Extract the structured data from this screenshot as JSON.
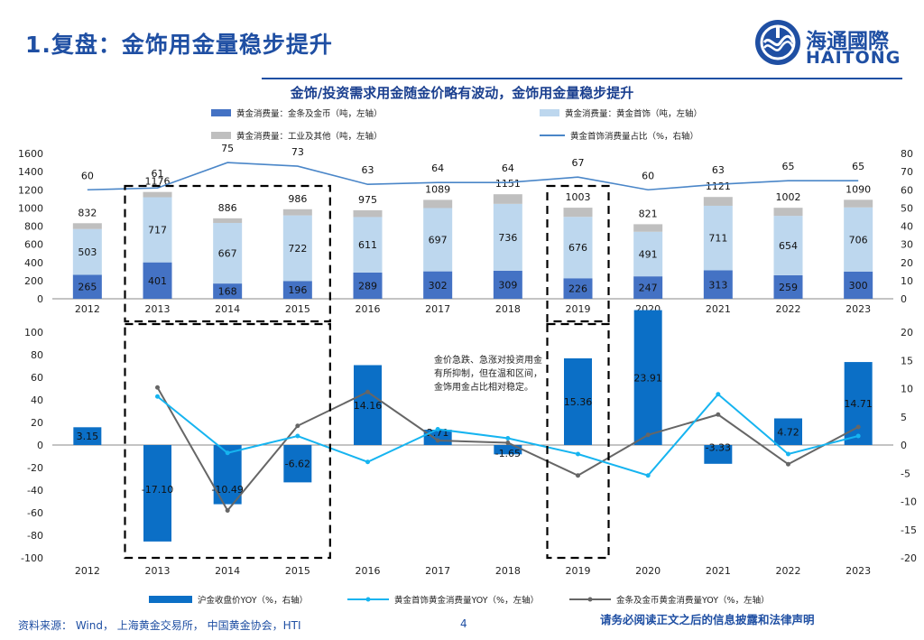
{
  "header": {
    "page_title": "1.复盘：金饰用金量稳步提升",
    "logo_cn": "海通國際",
    "logo_en": "HAITONG"
  },
  "colors": {
    "brand": "#1f4fa3",
    "bar_dark": "#4472c4",
    "bar_light": "#bdd7ee",
    "bar_gray": "#bfbfbf",
    "line_ratio": "#4a86c8",
    "bar_yoy": "#0b6fc6",
    "line_jewelry": "#16b4f0",
    "line_bar_coin": "#666666"
  },
  "footer": {
    "source": "资料来源： Wind， 上海黄金交易所， 中国黄金协会，HTI",
    "page_number": "4",
    "disclaimer": "请务必阅读正文之后的信息披露和法律声明"
  },
  "note": "金价急跌、急涨对投资用金有所抑制，但在温和区间，金饰用金占比相对稳定。",
  "chart_data": [
    {
      "type": "bar",
      "title": "金饰/投资需求用金随金价略有波动，金饰用金量稳步提升",
      "categories": [
        "2012",
        "2013",
        "2014",
        "2015",
        "2016",
        "2017",
        "2018",
        "2019",
        "2020",
        "2021",
        "2022",
        "2023"
      ],
      "legend": {
        "bar_coin": "黄金消费量：金条及金币（吨，左轴）",
        "jewelry": "黄金消费量：黄金首饰（吨，左轴）",
        "industrial": "黄金消费量：工业及其他（吨，左轴）",
        "ratio": "黄金首饰消费量占比（%，右轴）"
      },
      "series": [
        {
          "name": "黄金消费量：金条及金币（吨，左轴）",
          "values": [
            265,
            401,
            168,
            196,
            289,
            302,
            309,
            226,
            247,
            313,
            259,
            300
          ]
        },
        {
          "name": "黄金消费量：黄金首饰（吨，左轴）",
          "values": [
            503,
            717,
            667,
            722,
            611,
            697,
            736,
            676,
            491,
            711,
            654,
            706
          ]
        },
        {
          "name": "黄金消费量：工业及其他（吨，左轴）",
          "values": [
            64,
            58,
            51,
            68,
            75,
            90,
            106,
            101,
            83,
            97,
            89,
            84
          ]
        },
        {
          "name": "黄金首饰消费量占比（%，右轴）",
          "values": [
            60,
            61,
            75,
            73,
            63,
            64,
            64,
            67,
            60,
            63,
            65,
            65
          ]
        }
      ],
      "totals": [
        832,
        1176,
        886,
        986,
        975,
        1089,
        1151,
        1003,
        821,
        1121,
        1002,
        1090
      ],
      "ylim": [
        0,
        1600
      ],
      "yticks": [
        0,
        200,
        400,
        600,
        800,
        1000,
        1200,
        1400,
        1600
      ],
      "y2lim": [
        0,
        80
      ],
      "y2ticks": [
        0,
        10,
        20,
        30,
        40,
        50,
        60,
        70,
        80
      ]
    },
    {
      "type": "bar",
      "categories": [
        "2012",
        "2013",
        "2014",
        "2015",
        "2016",
        "2017",
        "2018",
        "2019",
        "2020",
        "2021",
        "2022",
        "2023"
      ],
      "legend": {
        "price": "沪金收盘价YOY（%，右轴）",
        "jewelry": "黄金首饰黄金消费量YOY（%，左轴）",
        "bar_coin": "金条及金币黄金消费量YOY（%，左轴）"
      },
      "series": [
        {
          "name": "沪金收盘价YOY（%，右轴）",
          "values": [
            3.15,
            -17.1,
            -10.49,
            -6.62,
            14.16,
            2.71,
            -1.65,
            15.36,
            23.91,
            -3.33,
            4.72,
            14.71
          ]
        },
        {
          "name": "黄金首饰黄金消费量YOY（%，左轴）",
          "values": [
            null,
            43,
            -7,
            8,
            -15,
            14,
            6,
            -8,
            -27,
            45,
            -8,
            8
          ]
        },
        {
          "name": "金条及金币黄金消费量YOY（%，左轴）",
          "values": [
            null,
            51,
            -58,
            17,
            47,
            4,
            2,
            -27,
            9,
            27,
            -17,
            16
          ]
        }
      ],
      "ylim": [
        -100,
        100
      ],
      "yticks": [
        -100,
        -80,
        -60,
        -40,
        -20,
        0,
        20,
        40,
        60,
        80,
        100
      ],
      "y2lim": [
        -20,
        20
      ],
      "y2ticks": [
        -20,
        -15,
        -10,
        -5,
        0,
        5,
        10,
        15,
        20
      ]
    }
  ]
}
